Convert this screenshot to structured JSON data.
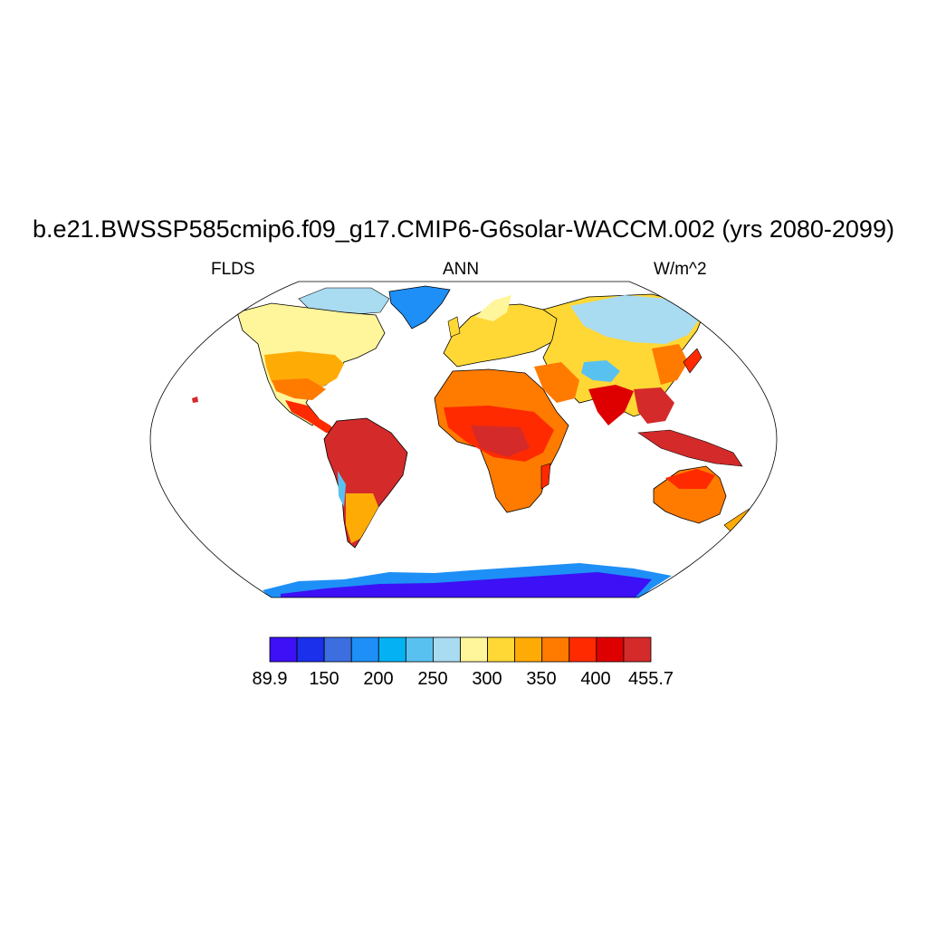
{
  "title": "b.e21.BWSSP585cmip6.f09_g17.CMIP6-G6solar-WACCM.002 (yrs 2080-2099)",
  "subtitle_left": "FLDS",
  "subtitle_center": "ANN",
  "subtitle_right": "W/m^2",
  "colorbar": {
    "colors": [
      "#3d10f5",
      "#1a30ea",
      "#3c6ee0",
      "#1e8ff6",
      "#04b2f4",
      "#59c1f0",
      "#a9dbf1",
      "#fff59a",
      "#ffd836",
      "#ffab06",
      "#ff7b00",
      "#ff2a00",
      "#de0000",
      "#d42a2a"
    ],
    "tick_labels": [
      "89.9",
      "150",
      "200",
      "250",
      "300",
      "350",
      "400",
      "455.7"
    ]
  },
  "map": {
    "variable": "FLDS",
    "units": "W/m^2",
    "projection": "Robinson",
    "regions": [
      {
        "name": "Antarctica",
        "color": "#3d10f5"
      },
      {
        "name": "Antarctic coast",
        "color": "#1e8ff6"
      },
      {
        "name": "Greenland",
        "color": "#1e8ff6"
      },
      {
        "name": "Canadian Arctic",
        "color": "#a9dbf1"
      },
      {
        "name": "Siberia",
        "color": "#a9dbf1"
      },
      {
        "name": "Tibetan Plateau",
        "color": "#59c1f0"
      },
      {
        "name": "Canada",
        "color": "#fff59a"
      },
      {
        "name": "Europe",
        "color": "#ffd836"
      },
      {
        "name": "Central Asia",
        "color": "#ffd836"
      },
      {
        "name": "United States",
        "color": "#ffab06"
      },
      {
        "name": "Middle East",
        "color": "#ff7b00"
      },
      {
        "name": "North Africa",
        "color": "#ff7b00"
      },
      {
        "name": "Tropical Africa",
        "color": "#ff2a00"
      },
      {
        "name": "Amazon",
        "color": "#d42a2a"
      },
      {
        "name": "Southeast Asia",
        "color": "#d42a2a"
      },
      {
        "name": "India",
        "color": "#de0000"
      },
      {
        "name": "Australia",
        "color": "#ff7b00"
      },
      {
        "name": "Southern South America",
        "color": "#ffab06"
      }
    ]
  }
}
